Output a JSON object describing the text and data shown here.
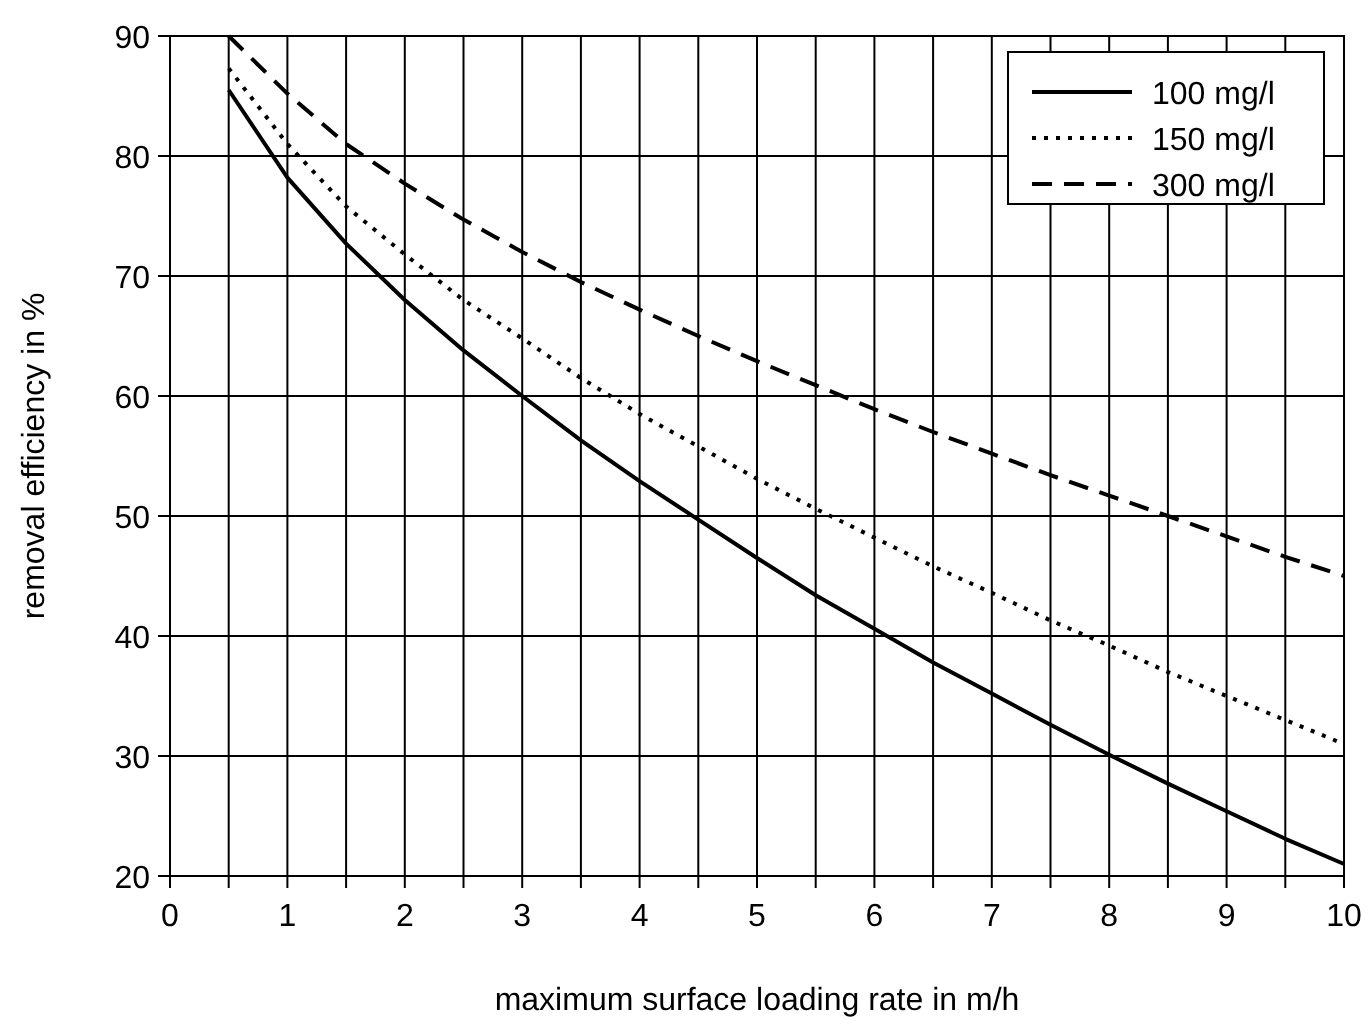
{
  "chart_data": {
    "type": "line",
    "xlabel": "maximum surface loading rate in m/h",
    "ylabel": "removal efficiency in %",
    "x": [
      0.5,
      1,
      1.5,
      2,
      2.5,
      3,
      3.5,
      4,
      4.5,
      5,
      5.5,
      6,
      6.5,
      7,
      7.5,
      8,
      8.5,
      9,
      9.5,
      10
    ],
    "series": [
      {
        "name": "100 mg/l",
        "color": "#000000",
        "line_style": "solid",
        "values": [
          85.5,
          78.2,
          72.7,
          68,
          63.8,
          60,
          56.3,
          52.9,
          49.7,
          46.5,
          43.4,
          40.6,
          37.8,
          35.2,
          32.6,
          30.1,
          27.7,
          25.4,
          23.1,
          21
        ]
      },
      {
        "name": "150 mg/l",
        "color": "#000000",
        "line_style": "dotted",
        "values": [
          87.3,
          81,
          75.8,
          71.8,
          68,
          64.8,
          61.5,
          58.5,
          55.8,
          53.1,
          50.6,
          48.2,
          45.8,
          43.6,
          41.3,
          39.2,
          37,
          35,
          33,
          31
        ]
      },
      {
        "name": "300 mg/l",
        "color": "#000000",
        "line_style": "dashed",
        "values": [
          90,
          85.2,
          81,
          77.7,
          74.7,
          72,
          69.5,
          67.2,
          65,
          62.9,
          60.9,
          58.9,
          57,
          55.2,
          53.4,
          51.7,
          50,
          48.3,
          46.6,
          45
        ]
      }
    ],
    "xlim": [
      0,
      10
    ],
    "xticks": [
      0,
      {
        "value": 0.5,
        "label": null
      },
      1,
      {
        "value": 1.5,
        "label": null
      },
      2,
      {
        "value": 2.5,
        "label": null
      },
      3,
      {
        "value": 3.5,
        "label": null
      },
      4,
      {
        "value": 4.5,
        "label": null
      },
      5,
      {
        "value": 5.5,
        "label": null
      },
      6,
      {
        "value": 6.5,
        "label": null
      },
      7,
      {
        "value": 7.5,
        "label": null
      },
      8,
      {
        "value": 8.5,
        "label": null
      },
      9,
      {
        "value": 9.5,
        "label": null
      },
      10
    ],
    "ylim": [
      20,
      90
    ],
    "yticks": [
      20,
      30,
      40,
      50,
      60,
      70,
      80,
      90
    ],
    "grid": true,
    "legend": "top right",
    "marker": "none"
  }
}
